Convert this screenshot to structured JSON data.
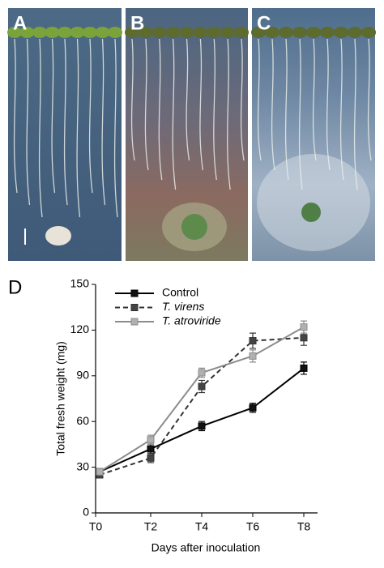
{
  "panels": [
    "A",
    "B",
    "C"
  ],
  "chart_data": {
    "type": "line",
    "label": "D",
    "xlabel": "Days after inoculation",
    "ylabel": "Total fresh weight (mg)",
    "categories": [
      "T0",
      "T2",
      "T4",
      "T6",
      "T8"
    ],
    "series": [
      {
        "name": "Control",
        "color": "#000000",
        "marker_fill": "#111111",
        "dashed": false,
        "values": [
          27,
          42,
          57,
          69,
          95
        ],
        "errors": [
          2,
          3,
          3,
          3,
          4
        ]
      },
      {
        "name": "T. virens",
        "color": "#333333",
        "marker_fill": "#444444",
        "dashed": true,
        "values": [
          25,
          36,
          83,
          113,
          115
        ],
        "errors": [
          2,
          3,
          4,
          5,
          5
        ]
      },
      {
        "name": "T. atroviride",
        "color": "#8c8c8c",
        "marker_fill": "#b0b0b0",
        "dashed": false,
        "values": [
          27,
          48,
          92,
          103,
          122
        ],
        "errors": [
          2,
          3,
          3,
          4,
          4
        ]
      }
    ],
    "ylim": [
      0,
      150
    ],
    "yticks": [
      0,
      30,
      60,
      90,
      120,
      150
    ],
    "legend": "upper-left"
  }
}
